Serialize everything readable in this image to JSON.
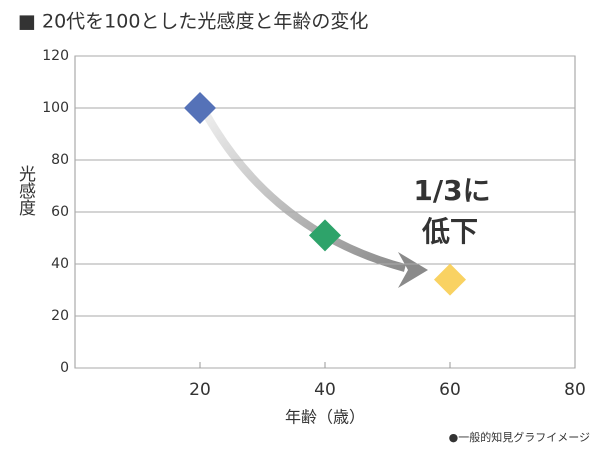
{
  "chart_data": {
    "type": "scatter",
    "title": "■ 20代を100とした光感度と年齢の変化",
    "x_label": "年齢（歳）",
    "y_label": "光感度",
    "annotation": [
      "1/3に",
      "低下"
    ],
    "note": "●一般的知見グラフイメージ",
    "x": [
      20,
      40,
      60
    ],
    "series": [
      {
        "colors": [
          "#5572b8",
          "#2ea36a",
          "#f9d262"
        ],
        "values": [
          100,
          51,
          34
        ]
      }
    ],
    "xlim": [
      0,
      80
    ],
    "xticks": [
      20,
      40,
      60,
      80
    ],
    "ylim": [
      0,
      120
    ],
    "yticks": [
      0,
      20,
      40,
      60,
      80,
      100,
      120
    ],
    "grid": true
  }
}
